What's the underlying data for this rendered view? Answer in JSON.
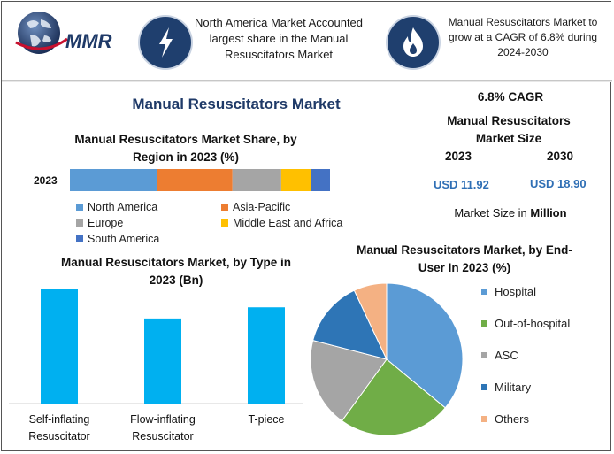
{
  "header": {
    "logo_text": "MMR",
    "lightning_icon": "lightning-bolt-icon",
    "flame_icon": "flame-icon",
    "fact1": "North America Market Accounted largest share in the Manual Resuscitators Market",
    "fact2": "Manual Resuscitators Market to grow at a CAGR of 6.8% during 2024-2030"
  },
  "main_title": "Manual Resuscitators Market",
  "market_size": {
    "cagr": "6.8% CAGR",
    "title": "Manual Resuscitators Market Size",
    "year_start": "2023",
    "year_end": "2030",
    "value_start": "USD 11.92",
    "value_end": "USD 18.90",
    "unit_prefix": "Market Size in ",
    "unit_bold": "Million"
  },
  "colors": {
    "accent_title": "#1f3a68",
    "usd_value": "#2f6fb5",
    "north_america": "#5b9bd5",
    "asia_pacific": "#ed7d31",
    "europe": "#a5a5a5",
    "middle_east_africa": "#ffc000",
    "south_america": "#4472c4",
    "type_bars": "#00b0f0"
  },
  "chart_data": [
    {
      "type": "bar",
      "orientation": "horizontal-stacked",
      "title": "Manual Resuscitators Market Share, by Region in 2023 (%)",
      "categories": [
        "2023"
      ],
      "series": [
        {
          "name": "North America",
          "values": [
            32
          ],
          "color": "#5b9bd5"
        },
        {
          "name": "Asia-Pacific",
          "values": [
            28
          ],
          "color": "#ed7d31"
        },
        {
          "name": "Europe",
          "values": [
            18
          ],
          "color": "#a5a5a5"
        },
        {
          "name": "Middle East and Africa",
          "values": [
            11
          ],
          "color": "#ffc000"
        },
        {
          "name": "South America",
          "values": [
            7
          ],
          "color": "#4472c4"
        }
      ],
      "xlim": [
        0,
        96
      ],
      "legend": "bottom",
      "grid": false
    },
    {
      "type": "bar",
      "title": "Manual Resuscitators Market, by Type in 2023 (Bn)",
      "categories": [
        "Self-inflating Resuscitator",
        "Flow-inflating Resuscitator",
        "T-piece"
      ],
      "values": [
        5.1,
        3.8,
        4.3
      ],
      "ylim": [
        0,
        5.1
      ],
      "color": "#00b0f0",
      "grid": false
    },
    {
      "type": "pie",
      "title": "Manual Resuscitators Market, by End-User In 2023 (%)",
      "categories": [
        "Hospital",
        "Out-of-hospital",
        "ASC",
        "Military",
        "Others"
      ],
      "values": [
        36,
        24,
        19,
        14,
        7
      ],
      "colors": [
        "#5b9bd5",
        "#70ad47",
        "#a5a5a5",
        "#2e75b6",
        "#f4b183"
      ],
      "legend": "right"
    }
  ]
}
